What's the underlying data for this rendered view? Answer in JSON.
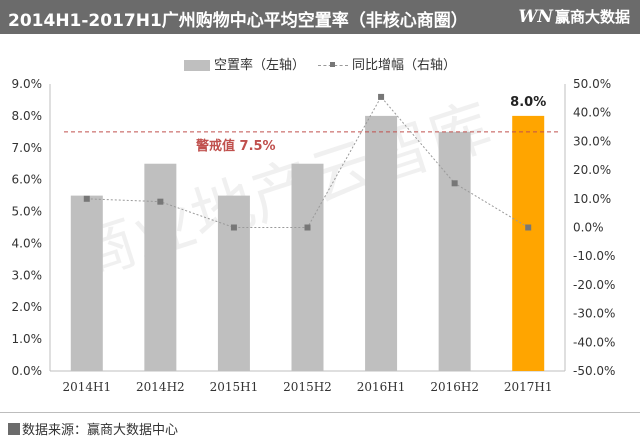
{
  "header": {
    "title": "2014H1-2017H1广州购物中心平均空置率（非核心商圈）",
    "brand_logo": "WN",
    "brand_name": "赢商大数据"
  },
  "legend": {
    "bar_label": "空置率（左轴）",
    "line_label": "同比增幅（右轴）"
  },
  "watermark": "商业地产云智库",
  "footer": {
    "source": "数据来源：赢商大数据中心"
  },
  "colors": {
    "bar": "#bfbfbf",
    "highlight_bar": "#ffa500",
    "line": "#9a9a9a",
    "marker": "#777777",
    "threshold": "#c0504d",
    "header_bg": "#6b6b6b"
  },
  "chart_data": {
    "type": "bar",
    "categories": [
      "2014H1",
      "2014H2",
      "2015H1",
      "2015H2",
      "2016H1",
      "2016H2",
      "2017H1"
    ],
    "series": [
      {
        "name": "空置率（左轴）",
        "type": "bar",
        "axis": "left",
        "values": [
          5.5,
          6.5,
          5.5,
          6.5,
          8.0,
          7.5,
          8.0
        ]
      },
      {
        "name": "同比增幅（右轴）",
        "type": "line",
        "axis": "right",
        "values": [
          10,
          9,
          0,
          0,
          45.5,
          15.4,
          0
        ]
      }
    ],
    "highlight_index": 6,
    "data_labels": [
      {
        "index": 6,
        "text": "8.0%"
      }
    ],
    "threshold": {
      "value": 7.5,
      "label": "警戒值 7.5%"
    },
    "y_left": {
      "min": 0,
      "max": 9,
      "step": 1,
      "ticks": [
        "0.0%",
        "1.0%",
        "2.0%",
        "3.0%",
        "4.0%",
        "5.0%",
        "6.0%",
        "7.0%",
        "8.0%",
        "9.0%"
      ]
    },
    "y_right": {
      "min": -50,
      "max": 50,
      "step": 10,
      "ticks": [
        "-50.0%",
        "-40.0%",
        "-30.0%",
        "-20.0%",
        "-10.0%",
        "0.0%",
        "10.0%",
        "20.0%",
        "30.0%",
        "40.0%",
        "50.0%"
      ]
    },
    "grid": false,
    "legend_position": "top"
  }
}
